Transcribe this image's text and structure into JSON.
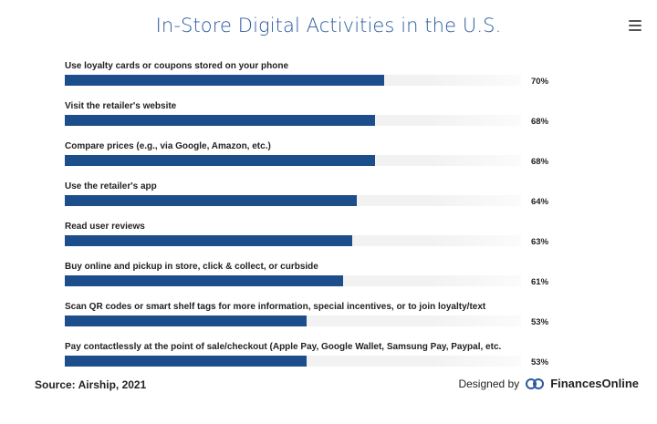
{
  "title": "In-Store Digital Activities in the U.S.",
  "menu_icon": "hamburger-menu-icon",
  "source": "Source: Airship, 2021",
  "designed_by": "Designed by",
  "brand": "FinancesOnline",
  "colors": {
    "bar": "#1d4e8c",
    "title": "#2a5a9e",
    "track": "#f2f2f2"
  },
  "chart_data": {
    "type": "bar",
    "orientation": "horizontal",
    "title": "In-Store Digital Activities in the U.S.",
    "xlabel": "",
    "ylabel": "",
    "xlim": [
      0,
      100
    ],
    "categories": [
      "Use loyalty cards or coupons stored on your phone",
      "Visit the retailer's website",
      "Compare prices (e.g., via Google, Amazon, etc.)",
      "Use the retailer's app",
      "Read user reviews",
      "Buy online and pickup in store, click & collect, or curbside",
      "Scan QR codes or smart shelf tags for more information, special incentives, or to join loyalty/text",
      "Pay contactlessly at the point of sale/checkout (Apple Pay, Google Wallet, Samsung Pay, Paypal, etc."
    ],
    "values": [
      70,
      68,
      68,
      64,
      63,
      61,
      53,
      53
    ],
    "value_labels": [
      "70%",
      "68%",
      "68%",
      "64%",
      "63%",
      "61%",
      "53%",
      "53%"
    ]
  }
}
